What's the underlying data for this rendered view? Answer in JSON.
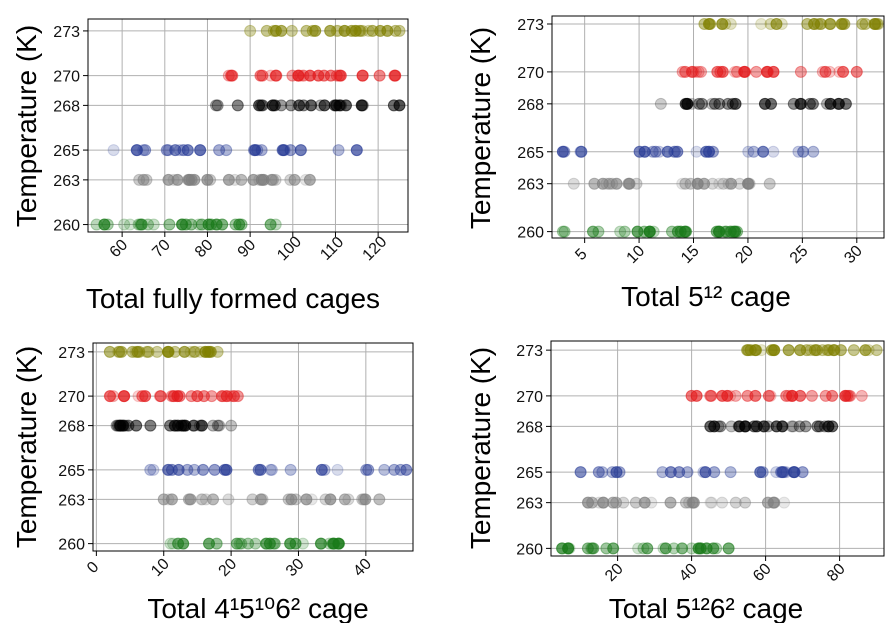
{
  "chart_data": [
    {
      "type": "scatter",
      "xlabel": "Total fully formed cages",
      "ylabel": "Temperature (K)",
      "xticks": [
        60,
        70,
        80,
        90,
        100,
        110,
        120
      ],
      "yticks": [
        260,
        263,
        265,
        268,
        270,
        273
      ],
      "xlim": [
        52,
        127
      ],
      "ylim": [
        259.5,
        273.8
      ],
      "series": [
        {
          "temperature": 273,
          "color": "#808000",
          "min": 90,
          "max": 125
        },
        {
          "temperature": 270,
          "color": "#e31a1c",
          "min": 85,
          "max": 124
        },
        {
          "temperature": 268,
          "color": "#000000",
          "min": 82,
          "max": 125
        },
        {
          "temperature": 265,
          "color": "#283c96",
          "min": 58,
          "max": 115
        },
        {
          "temperature": 263,
          "color": "#7f7f7f",
          "min": 64,
          "max": 104
        },
        {
          "temperature": 260,
          "color": "#1a7a1a",
          "min": 54,
          "max": 96
        }
      ]
    },
    {
      "type": "scatter",
      "xlabel": "Total 5¹² cage",
      "ylabel": "Temperature (K)",
      "xticks": [
        5,
        10,
        15,
        20,
        25,
        30
      ],
      "yticks": [
        260,
        263,
        265,
        268,
        270,
        273
      ],
      "xlim": [
        2,
        32.5
      ],
      "ylim": [
        259.6,
        273.5
      ],
      "series": [
        {
          "temperature": 273,
          "color": "#808000",
          "min": 16,
          "max": 32
        },
        {
          "temperature": 270,
          "color": "#e31a1c",
          "min": 14,
          "max": 30
        },
        {
          "temperature": 268,
          "color": "#000000",
          "min": 12,
          "max": 29
        },
        {
          "temperature": 265,
          "color": "#283c96",
          "min": 3,
          "max": 26
        },
        {
          "temperature": 263,
          "color": "#7f7f7f",
          "min": 4,
          "max": 22
        },
        {
          "temperature": 260,
          "color": "#1a7a1a",
          "min": 3,
          "max": 19
        }
      ]
    },
    {
      "type": "scatter",
      "xlabel": "Total 4¹5¹⁰6² cage",
      "ylabel": "Temperature (K)",
      "xticks": [
        0,
        10,
        20,
        30,
        40
      ],
      "yticks": [
        260,
        263,
        265,
        268,
        270,
        273
      ],
      "xlim": [
        -0.5,
        47
      ],
      "ylim": [
        259.5,
        273.6
      ],
      "series": [
        {
          "temperature": 273,
          "color": "#808000",
          "min": 2,
          "max": 18
        },
        {
          "temperature": 270,
          "color": "#e31a1c",
          "min": 2,
          "max": 21
        },
        {
          "temperature": 268,
          "color": "#000000",
          "min": 3,
          "max": 20
        },
        {
          "temperature": 265,
          "color": "#283c96",
          "min": 8,
          "max": 46
        },
        {
          "temperature": 263,
          "color": "#7f7f7f",
          "min": 10,
          "max": 42
        },
        {
          "temperature": 260,
          "color": "#1a7a1a",
          "min": 11,
          "max": 36
        }
      ]
    },
    {
      "type": "scatter",
      "xlabel": "Total 5¹²6² cage",
      "ylabel": "Temperature (K)",
      "xticks": [
        20,
        40,
        60,
        80
      ],
      "yticks": [
        260,
        263,
        265,
        268,
        270,
        273
      ],
      "xlim": [
        2,
        92
      ],
      "ylim": [
        259.5,
        273.6
      ],
      "series": [
        {
          "temperature": 273,
          "color": "#808000",
          "min": 55,
          "max": 90
        },
        {
          "temperature": 270,
          "color": "#e31a1c",
          "min": 40,
          "max": 86
        },
        {
          "temperature": 268,
          "color": "#000000",
          "min": 45,
          "max": 78
        },
        {
          "temperature": 265,
          "color": "#283c96",
          "min": 10,
          "max": 70
        },
        {
          "temperature": 263,
          "color": "#7f7f7f",
          "min": 12,
          "max": 65
        },
        {
          "temperature": 260,
          "color": "#1a7a1a",
          "min": 5,
          "max": 50
        }
      ]
    }
  ]
}
